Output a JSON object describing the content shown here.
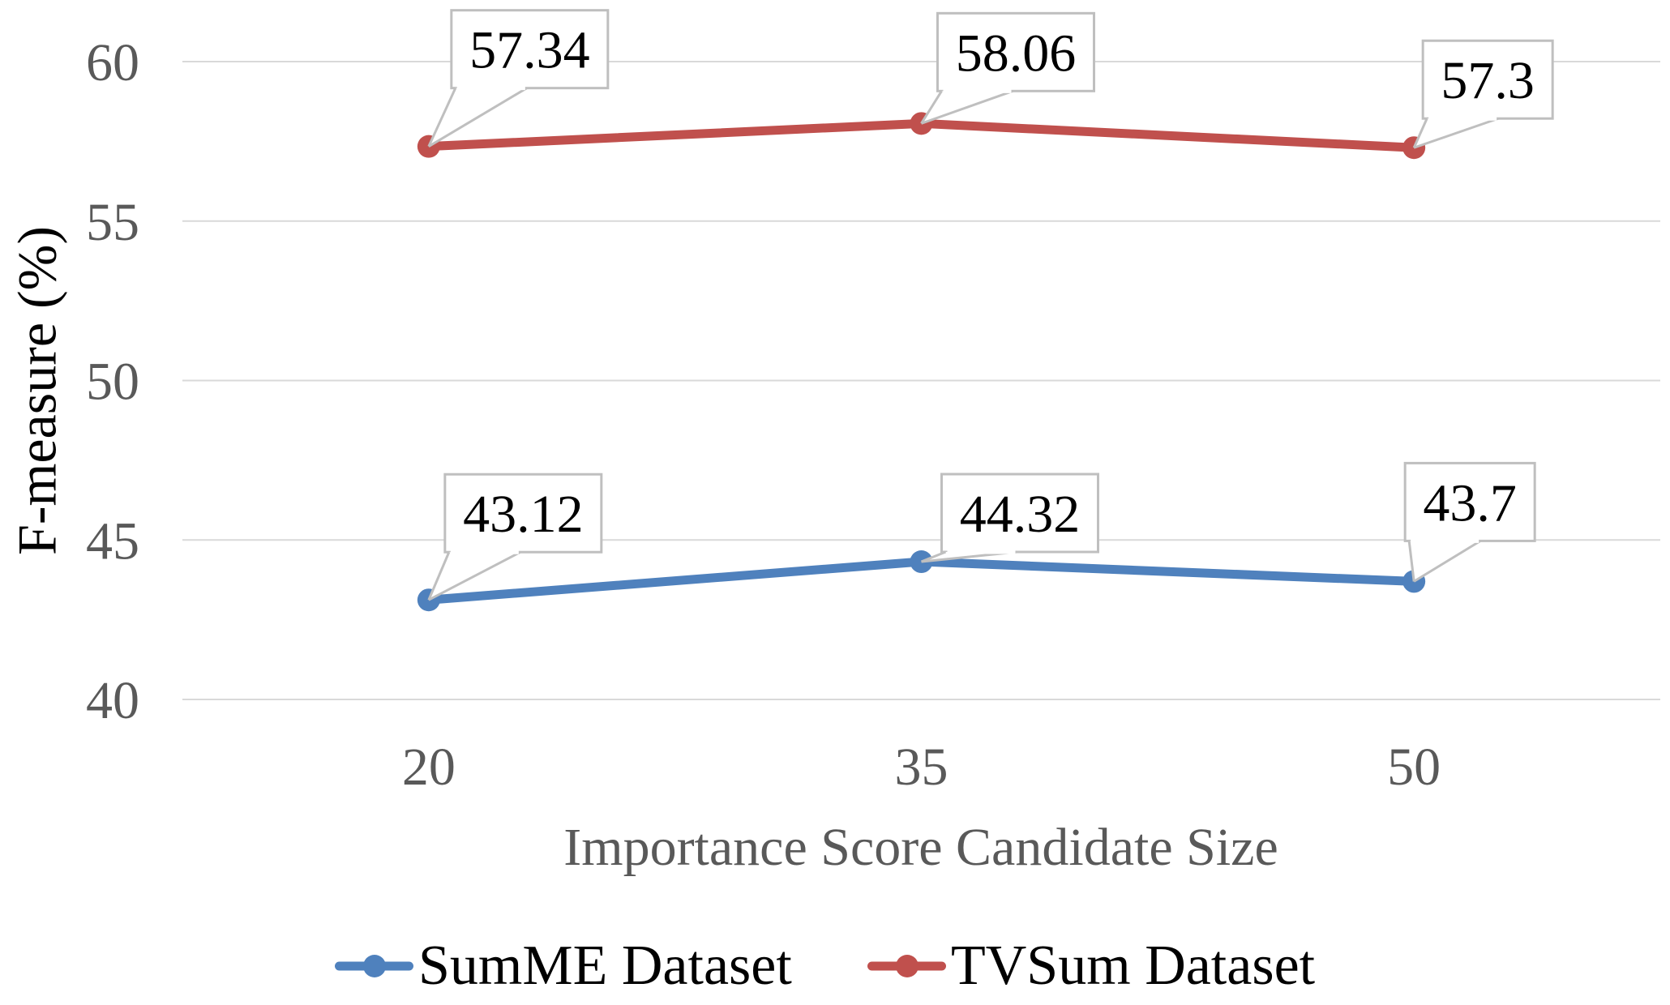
{
  "chart_data": {
    "type": "line",
    "categories": [
      "20",
      "35",
      "50"
    ],
    "series": [
      {
        "name": "SumME Dataset",
        "color": "#4F81BD",
        "values": [
          43.12,
          44.32,
          43.7
        ],
        "labels": [
          "43.12",
          "44.32",
          "43.7"
        ]
      },
      {
        "name": "TVSum Dataset",
        "color": "#C0504D",
        "values": [
          57.34,
          58.06,
          57.3
        ],
        "labels": [
          "57.34",
          "58.06",
          "57.3"
        ]
      }
    ],
    "title": "",
    "xlabel": "Importance Score Candidate Size",
    "ylabel": "F-measure (%)",
    "ylim": [
      40,
      60
    ],
    "yticks": [
      40,
      45,
      50,
      55,
      60
    ],
    "grid": "horizontal-only",
    "legend_position": "bottom",
    "data_labels_style": "white callout boxes with gray leader lines pointing to markers",
    "colors": {
      "gridline": "#D9D9D9",
      "tick_text": "#595959",
      "x_axis_title_text": "#595959",
      "y_axis_title_text": "#000000",
      "callout_border": "#BFBFBF",
      "callout_fill": "#FFFFFF",
      "callout_text": "#000000",
      "legend_text": "#000000",
      "background": "#FFFFFF"
    }
  }
}
